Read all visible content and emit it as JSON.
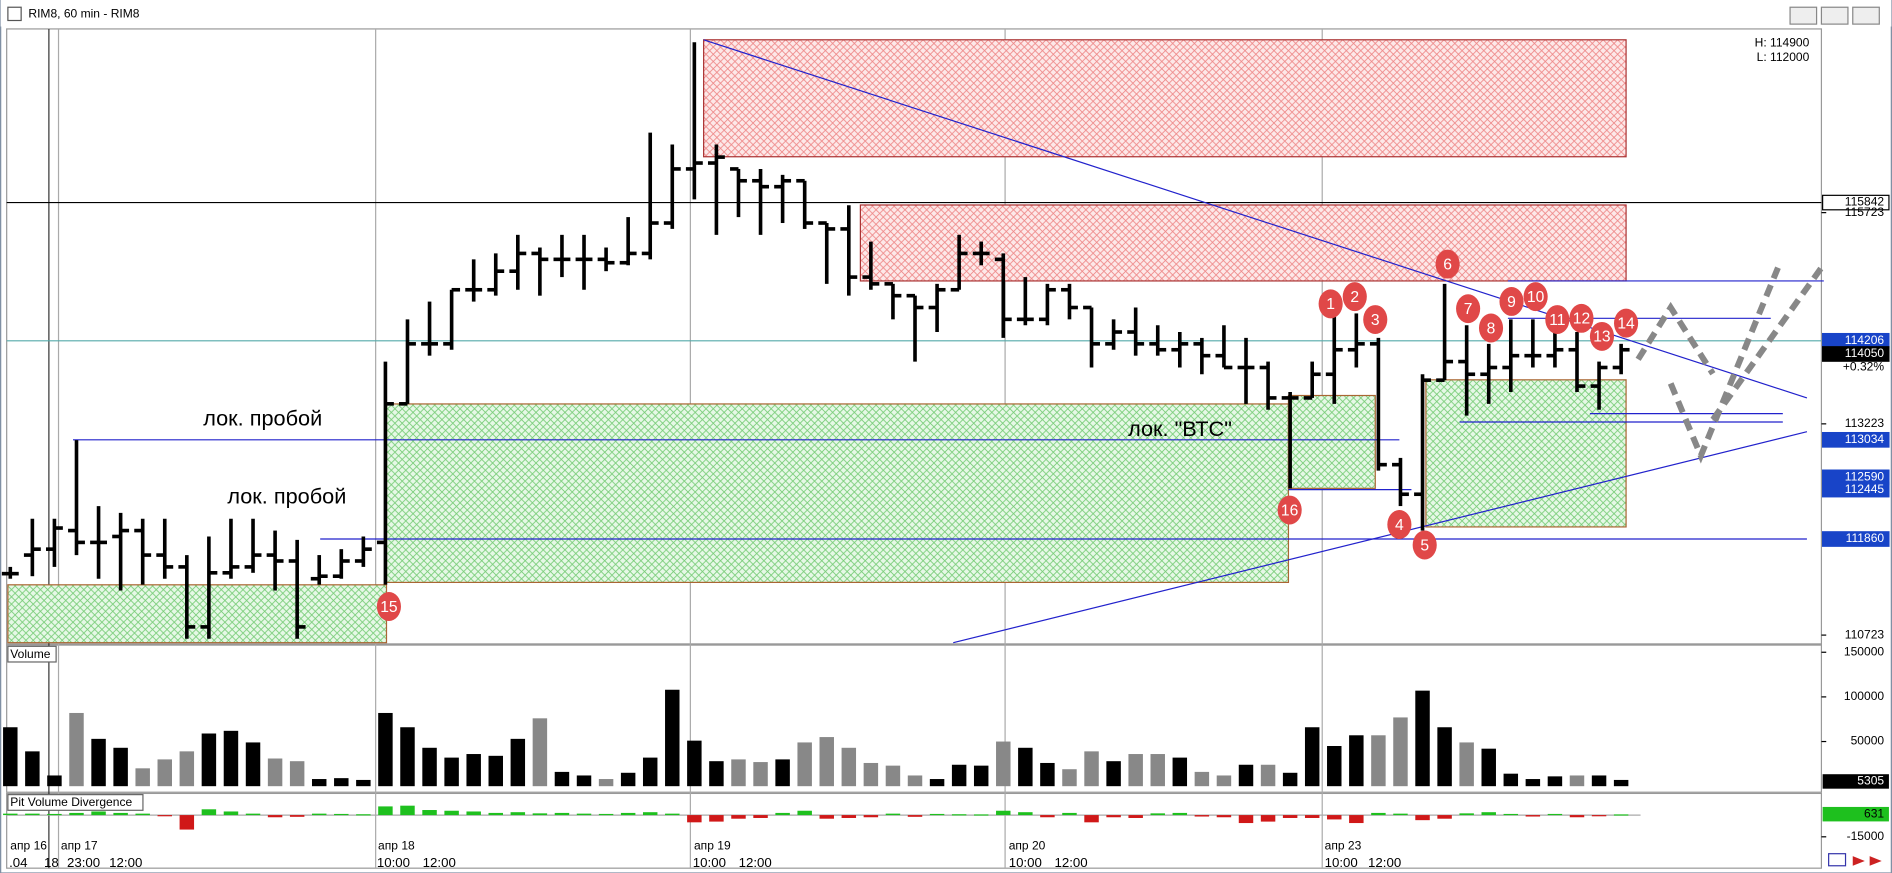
{
  "window": {
    "title": "RIM8, 60 min - RIM8"
  },
  "chart_data": [
    {
      "type": "ohlc",
      "hl": [
        "H: 114900",
        "L: 112000"
      ],
      "ylim": [
        110633,
        117897
      ],
      "yticks": [
        110723,
        113223,
        115723
      ],
      "levels": [
        {
          "value": 115842,
          "style": "outline"
        },
        {
          "value": 114206,
          "style": "blue"
        },
        {
          "value": 114050,
          "style": "black"
        },
        {
          "value": 113034,
          "style": "blue"
        },
        {
          "value": 112590,
          "style": "blue"
        },
        {
          "value": 112445,
          "style": "blue"
        },
        {
          "value": 111860,
          "style": "blue"
        }
      ],
      "change": "+0.32%",
      "annotations": [
        "лок. пробой",
        "лок. пробой",
        "лок. \"ВТС\""
      ],
      "markers": [
        "1",
        "2",
        "3",
        "4",
        "5",
        "6",
        "7",
        "8",
        "9",
        "10",
        "11",
        "12",
        "13",
        "14",
        "15",
        "16"
      ],
      "ohlc": [
        [
          111450,
          111530,
          111390,
          111450
        ],
        [
          111670,
          112100,
          111420,
          111740
        ],
        [
          111740,
          112100,
          111530,
          111990
        ],
        [
          111960,
          113030,
          111670,
          111820
        ],
        [
          111820,
          112250,
          111390,
          111820
        ],
        [
          111890,
          112170,
          111250,
          111960
        ],
        [
          111960,
          112100,
          111320,
          111670
        ],
        [
          111670,
          112100,
          111390,
          111530
        ],
        [
          111530,
          111670,
          110680,
          110820
        ],
        [
          110820,
          111890,
          110680,
          111460
        ],
        [
          111460,
          112100,
          111390,
          111530
        ],
        [
          111530,
          112100,
          111460,
          111670
        ],
        [
          111670,
          111960,
          111250,
          111600
        ],
        [
          111600,
          111850,
          110680,
          110820
        ],
        [
          111390,
          111670,
          111320,
          111420
        ],
        [
          111420,
          111740,
          111390,
          111600
        ],
        [
          111600,
          111890,
          111530,
          111740
        ],
        [
          111820,
          113960,
          111320,
          113460
        ],
        [
          113460,
          114460,
          113460,
          114170
        ],
        [
          114170,
          114670,
          114030,
          114170
        ],
        [
          114170,
          114810,
          114100,
          114810
        ],
        [
          114810,
          115170,
          114670,
          114810
        ],
        [
          114810,
          115240,
          114740,
          115030
        ],
        [
          115030,
          115460,
          114810,
          115240
        ],
        [
          115240,
          115310,
          114740,
          115170
        ],
        [
          115170,
          115460,
          114960,
          115170
        ],
        [
          115170,
          115460,
          114810,
          115170
        ],
        [
          115170,
          115310,
          115030,
          115130
        ],
        [
          115130,
          115670,
          115100,
          115240
        ],
        [
          115240,
          116670,
          115170,
          115600
        ],
        [
          115600,
          116530,
          115530,
          116240
        ],
        [
          116240,
          117740,
          115880,
          116310
        ],
        [
          116310,
          116530,
          115460,
          116380
        ],
        [
          116240,
          116240,
          115670,
          116100
        ],
        [
          116100,
          116240,
          115460,
          116030
        ],
        [
          116030,
          116170,
          115600,
          116100
        ],
        [
          116100,
          116100,
          115530,
          115600
        ],
        [
          115600,
          115600,
          114880,
          115530
        ],
        [
          115530,
          115810,
          114740,
          114960
        ],
        [
          114960,
          115380,
          114810,
          114880
        ],
        [
          114880,
          114880,
          114460,
          114740
        ],
        [
          114740,
          114740,
          113960,
          114600
        ],
        [
          114600,
          114880,
          114310,
          114810
        ],
        [
          114810,
          115460,
          114810,
          115240
        ],
        [
          115240,
          115380,
          115100,
          115240
        ],
        [
          115170,
          115240,
          114240,
          114460
        ],
        [
          114460,
          114960,
          114390,
          114460
        ],
        [
          114460,
          114880,
          114390,
          114810
        ],
        [
          114810,
          114880,
          114460,
          114600
        ],
        [
          114600,
          114600,
          113890,
          114170
        ],
        [
          114170,
          114460,
          114100,
          114310
        ],
        [
          114310,
          114600,
          114030,
          114170
        ],
        [
          114170,
          114390,
          114030,
          114100
        ],
        [
          114100,
          114310,
          113890,
          114170
        ],
        [
          114170,
          114240,
          113810,
          114030
        ],
        [
          114030,
          114390,
          113890,
          113890
        ],
        [
          113890,
          114240,
          113460,
          113890
        ],
        [
          113890,
          113960,
          113390,
          113530
        ],
        [
          113530,
          113600,
          112460,
          113530
        ],
        [
          113530,
          113960,
          113530,
          113810
        ],
        [
          113810,
          114600,
          113460,
          114100
        ],
        [
          114100,
          114530,
          113890,
          114170
        ],
        [
          114170,
          114240,
          112670,
          112740
        ],
        [
          112740,
          112820,
          112250,
          112390
        ],
        [
          112390,
          113810,
          111960,
          113740
        ],
        [
          113740,
          114880,
          113740,
          113960
        ],
        [
          113960,
          114390,
          113320,
          113810
        ],
        [
          113810,
          114170,
          113460,
          113890
        ],
        [
          113890,
          114460,
          113600,
          114030
        ],
        [
          114030,
          114460,
          113890,
          114030
        ],
        [
          114030,
          114310,
          113890,
          114100
        ],
        [
          114100,
          114310,
          113600,
          113670
        ],
        [
          113670,
          113960,
          113390,
          113890
        ],
        [
          113890,
          114170,
          113810,
          114100
        ]
      ]
    },
    {
      "type": "bar",
      "title": "Volume",
      "ylim": [
        0,
        158000
      ],
      "yticks": [
        50000,
        100000,
        150000
      ],
      "last": 5305,
      "values": [
        66000,
        39000,
        12000,
        82000,
        53000,
        43000,
        20000,
        30000,
        39000,
        59000,
        62000,
        49000,
        31000,
        28000,
        8000,
        9000,
        7000,
        82000,
        66000,
        43000,
        32000,
        36000,
        34000,
        53000,
        76000,
        16000,
        12000,
        8000,
        15000,
        32000,
        108000,
        51000,
        28000,
        30000,
        27000,
        30000,
        49000,
        55000,
        43000,
        26000,
        23000,
        12000,
        8000,
        24000,
        23000,
        50000,
        43000,
        26000,
        19000,
        39000,
        28000,
        36000,
        36000,
        32000,
        16000,
        12000,
        24000,
        24000,
        15000,
        66000,
        45000,
        57000,
        57000,
        77000,
        107000,
        66000,
        49000,
        42000,
        14000,
        8000,
        11000,
        12000,
        12000,
        7000
      ]
    },
    {
      "type": "bar",
      "title": "Pit Volume Divergence",
      "ylim": [
        -35000,
        13300
      ],
      "yticks": [
        -15000
      ],
      "last": 631,
      "values": [
        1000,
        1000,
        800,
        1500,
        2500,
        1500,
        1000,
        -800,
        -10000,
        4000,
        2500,
        1000,
        -1500,
        -1200,
        1000,
        800,
        600,
        6000,
        6500,
        3500,
        3000,
        2500,
        1500,
        2000,
        1200,
        1500,
        1000,
        800,
        1500,
        2000,
        1000,
        -5000,
        -4500,
        -2500,
        -2000,
        1500,
        3000,
        -2500,
        -2000,
        -1500,
        1000,
        -1200,
        800,
        600,
        500,
        3000,
        2000,
        -1500,
        1500,
        -5000,
        -1500,
        -2000,
        1200,
        1500,
        -1000,
        -1500,
        -5500,
        -4500,
        -2000,
        -2000,
        -3000,
        -5500,
        1500,
        1000,
        -3500,
        -2500,
        1200,
        2000,
        800,
        -1000,
        800,
        -1500,
        -800,
        500
      ]
    }
  ],
  "time_axis": {
    "dates": [
      "апр 16",
      "апр 17",
      "апр 18",
      "апр 19",
      "апр 20",
      "апр 23"
    ],
    "times": [
      ".04",
      "18",
      "23:00",
      "12:00",
      "10:00",
      "12:00",
      "10:00",
      "12:00",
      "10:00",
      "12:00",
      "10:00",
      "12:00"
    ]
  }
}
